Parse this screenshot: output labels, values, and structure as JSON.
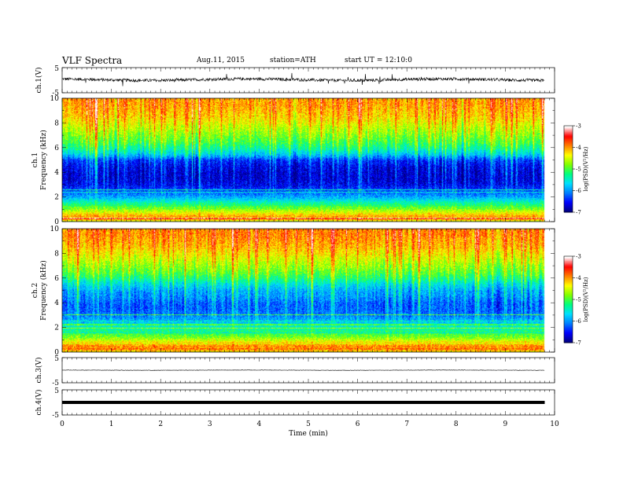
{
  "header": {
    "title": "VLF Spectra",
    "date": "Aug.11, 2015",
    "station": "station=ATH",
    "start": "start UT =   12:10:0"
  },
  "chart_data": [
    {
      "type": "line",
      "panel": "ch1-waveform",
      "ylabel": "ch.1(V)",
      "ylim": [
        -5,
        5
      ],
      "yticks": [
        "5",
        "-5"
      ],
      "xlim": [
        0,
        10
      ],
      "trace_end_min": 9.8,
      "baseline": 0.2,
      "noise_amplitude": 0.6,
      "spike_amplitude": 2.2,
      "color": "#000000"
    },
    {
      "type": "heatmap",
      "panel": "ch1-spectrogram",
      "ylabel": [
        "ch.1",
        "Frequency (kHz)"
      ],
      "ylim": [
        0,
        10
      ],
      "yticks": [
        "0",
        "2",
        "4",
        "6",
        "8",
        "10"
      ],
      "xlim": [
        0,
        10
      ],
      "data_end_min": 9.8,
      "colorbar": {
        "label": "log(PSD)(V²/Hz)",
        "range": [
          -7,
          -3
        ],
        "ticks": [
          "-3",
          "-4",
          "-5",
          "-6",
          "-7"
        ]
      },
      "profile_freq_khz": [
        0.0,
        0.3,
        0.6,
        0.9,
        1.2,
        1.6,
        2.0,
        2.5,
        3.0,
        3.5,
        4.0,
        4.5,
        5.0,
        5.5,
        6.0,
        6.5,
        7.0,
        7.5,
        8.0,
        8.5,
        9.0,
        9.5,
        10.0
      ],
      "profile_log_psd": [
        -4.6,
        -3.8,
        -4.2,
        -4.6,
        -5.0,
        -5.4,
        -5.9,
        -6.3,
        -6.6,
        -6.7,
        -6.7,
        -6.6,
        -6.4,
        -5.7,
        -5.3,
        -5.0,
        -4.8,
        -4.6,
        -4.4,
        -4.2,
        -4.1,
        -4.0,
        -4.0
      ]
    },
    {
      "type": "heatmap",
      "panel": "ch2-spectrogram",
      "ylabel": [
        "ch.2",
        "Frequency (kHz)"
      ],
      "ylim": [
        0,
        10
      ],
      "yticks": [
        "0",
        "2",
        "4",
        "6",
        "8",
        "10"
      ],
      "xlim": [
        0,
        10
      ],
      "data_end_min": 9.8,
      "colorbar": {
        "label": "log(PSD)(V²/Hz)",
        "range": [
          -7,
          -3
        ],
        "ticks": [
          "-3",
          "-4",
          "-5",
          "-6",
          "-7"
        ]
      },
      "profile_freq_khz": [
        0.0,
        0.3,
        0.6,
        0.9,
        1.2,
        1.6,
        2.0,
        2.5,
        3.0,
        3.5,
        4.0,
        4.5,
        5.0,
        5.5,
        6.0,
        6.5,
        7.0,
        7.5,
        8.0,
        8.5,
        9.0,
        9.5,
        10.0
      ],
      "profile_log_psd": [
        -4.4,
        -3.8,
        -4.0,
        -4.4,
        -4.8,
        -5.1,
        -5.4,
        -5.8,
        -6.1,
        -6.2,
        -6.2,
        -6.0,
        -5.9,
        -5.6,
        -5.2,
        -4.9,
        -4.7,
        -4.5,
        -4.3,
        -4.1,
        -4.0,
        -3.9,
        -3.9
      ]
    },
    {
      "type": "line",
      "panel": "ch3-waveform",
      "ylabel": "ch.3(V)",
      "ylim": [
        -5,
        5
      ],
      "yticks": [
        "5",
        "-5"
      ],
      "xlim": [
        0,
        10
      ],
      "trace_end_min": 9.8,
      "baseline": 0.0,
      "noise_amplitude": 0.08,
      "color": "#000000"
    },
    {
      "type": "line",
      "panel": "ch4-waveform",
      "ylabel": "ch.4(V)",
      "ylim": [
        -5,
        5
      ],
      "yticks": [
        "5",
        "-5"
      ],
      "xlim": [
        0,
        10
      ],
      "trace_end_min": 9.8,
      "baseline": 0.0,
      "noise_amplitude": 0.25,
      "color": "#000000"
    }
  ],
  "x_axis": {
    "label": "Time (min)",
    "ticks": [
      "0",
      "1",
      "2",
      "3",
      "4",
      "5",
      "6",
      "7",
      "8",
      "9",
      "10"
    ]
  },
  "colormap": [
    "#000080",
    "#0000ff",
    "#0080ff",
    "#00e0ff",
    "#00ff80",
    "#80ff00",
    "#ffff00",
    "#ff8000",
    "#ff0000",
    "#ffffff"
  ]
}
